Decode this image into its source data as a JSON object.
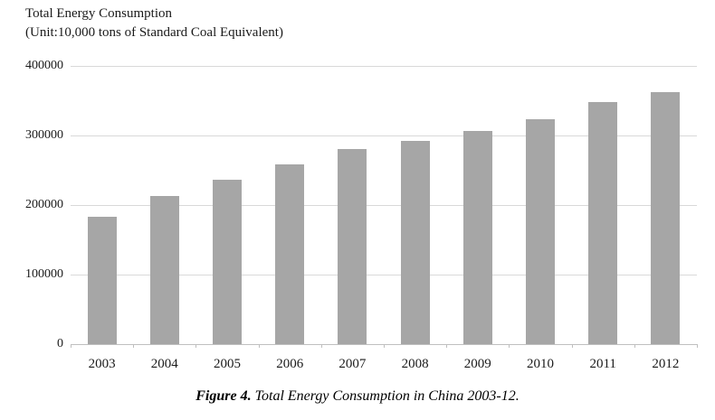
{
  "chart_data": {
    "type": "bar",
    "title": "Total Energy Consumption",
    "subtitle": "(Unit:10,000 tons of Standard Coal Equivalent)",
    "categories": [
      "2003",
      "2004",
      "2005",
      "2006",
      "2007",
      "2008",
      "2009",
      "2010",
      "2011",
      "2012"
    ],
    "values": [
      183000,
      213000,
      236000,
      259000,
      280000,
      292000,
      306000,
      324000,
      348000,
      362000
    ],
    "xlabel": "",
    "ylabel": "",
    "ylim": [
      0,
      400000
    ],
    "yticks": [
      0,
      100000,
      200000,
      300000,
      400000
    ],
    "grid": "horizontal gridlines at y ticks",
    "legend": "none",
    "bar_color": "#a6a6a6",
    "gridline_color": "#d9d9d9",
    "axis_color": "#bfbfbf"
  },
  "caption": {
    "label": "Figure 4.",
    "text": " Total Energy Consumption in China 2003-12."
  }
}
